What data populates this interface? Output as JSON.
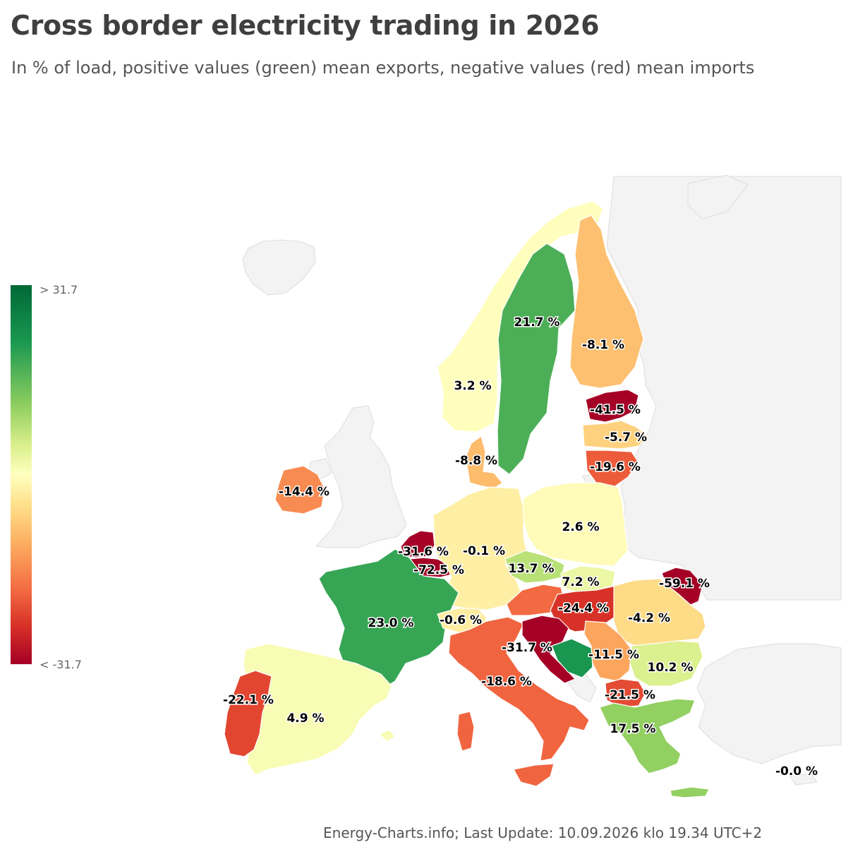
{
  "title": "Cross border electricity trading in 2026",
  "subtitle": "In % of load, positive values (green) mean exports, negative values (red) mean imports",
  "legend": {
    "max_label": "> 31.7",
    "min_label": "< -31.7",
    "colors": [
      "#006837",
      "#1a9850",
      "#91cf60",
      "#d9ef8b",
      "#ffffbf",
      "#fee08b",
      "#fdae61",
      "#f46d43",
      "#d73027",
      "#a50026"
    ]
  },
  "footer": "Energy-Charts.info; Last Update: 10.09.2026 klo 19.34 UTC+2",
  "countries": [
    {
      "id": "se",
      "value": 21.7,
      "label": "21.7 %"
    },
    {
      "id": "fi",
      "value": -8.1,
      "label": "-8.1 %"
    },
    {
      "id": "no",
      "value": 3.2,
      "label": "3.2 %"
    },
    {
      "id": "ee",
      "value": -41.5,
      "label": "-41.5 %"
    },
    {
      "id": "lv",
      "value": -5.7,
      "label": "-5.7 %"
    },
    {
      "id": "lt",
      "value": -19.6,
      "label": "-19.6 %"
    },
    {
      "id": "dk",
      "value": -8.8,
      "label": "-8.8 %"
    },
    {
      "id": "ie",
      "value": -14.4,
      "label": "-14.4 %"
    },
    {
      "id": "pl",
      "value": 2.6,
      "label": "2.6 %"
    },
    {
      "id": "nl",
      "value": -31.6,
      "label": "-31.6 %"
    },
    {
      "id": "de",
      "value": -0.1,
      "label": "-0.1 %"
    },
    {
      "id": "be",
      "value": -72.5,
      "label": "-72.5 %"
    },
    {
      "id": "cz",
      "value": 13.7,
      "label": "13.7 %"
    },
    {
      "id": "sk",
      "value": 7.2,
      "label": "7.2 %"
    },
    {
      "id": "md",
      "value": -59.1,
      "label": "-59.1 %"
    },
    {
      "id": "hu",
      "value": -24.4,
      "label": "-24.4 %"
    },
    {
      "id": "ro",
      "value": -4.2,
      "label": "-4.2 %"
    },
    {
      "id": "fr",
      "value": 23.0,
      "label": "23.0 %"
    },
    {
      "id": "ch",
      "value": -0.6,
      "label": "-0.6 %"
    },
    {
      "id": "si",
      "value": -31.7,
      "label": "-31.7 %"
    },
    {
      "id": "rs",
      "value": -11.5,
      "label": "-11.5 %"
    },
    {
      "id": "bg",
      "value": 10.2,
      "label": "10.2 %"
    },
    {
      "id": "it",
      "value": -18.6,
      "label": "-18.6 %"
    },
    {
      "id": "pt",
      "value": -22.1,
      "label": "-22.1 %"
    },
    {
      "id": "mk",
      "value": -21.5,
      "label": "-21.5 %"
    },
    {
      "id": "es",
      "value": 4.9,
      "label": "4.9 %"
    },
    {
      "id": "gr",
      "value": 17.5,
      "label": "17.5 %"
    },
    {
      "id": "tr",
      "value": -0.0,
      "label": "-0.0 %"
    }
  ]
}
